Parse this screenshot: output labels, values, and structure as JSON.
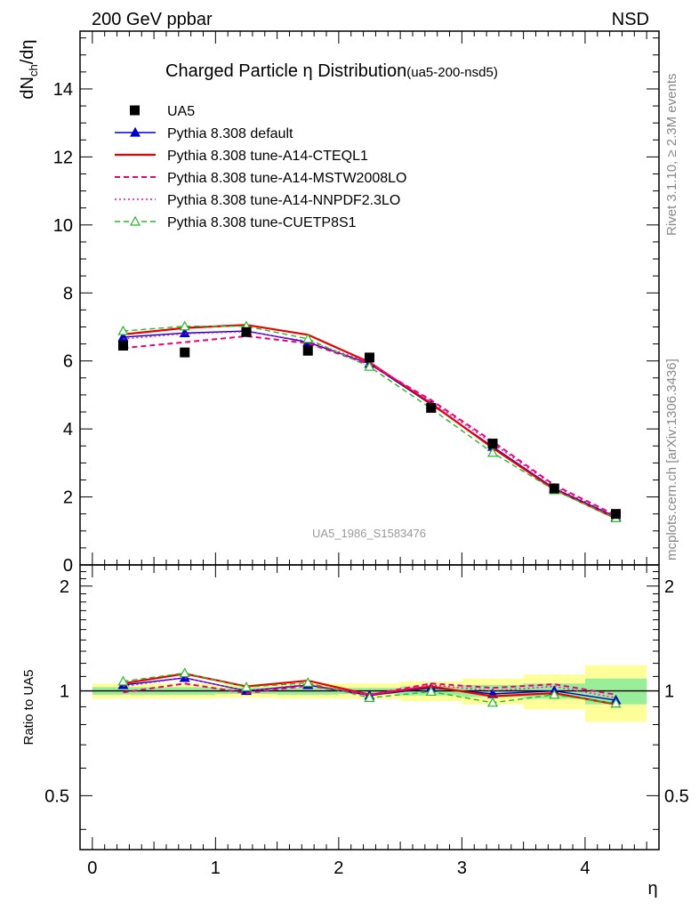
{
  "header": {
    "left": "200 GeV ppbar",
    "right": "NSD"
  },
  "side": {
    "rivet": "Rivet 3.1.10, ≥ 2.3M events",
    "mcplots": "mcplots.cern.ch [arXiv:1306.3436]"
  },
  "chart_data": [
    {
      "type": "line",
      "title": "Charged Particle η Distribution",
      "subtitle": "(ua5-200-nsd5)",
      "ylabel": "dN_ch/dη",
      "xlabel": "",
      "xlim": [
        -0.1,
        4.6
      ],
      "ylim": [
        0,
        15.7
      ],
      "yticks": [
        0,
        2,
        4,
        6,
        8,
        10,
        12,
        14
      ],
      "watermark": "UA5_1986_S1583476",
      "legend_position": "top-left",
      "x": [
        0.25,
        0.75,
        1.25,
        1.75,
        2.25,
        2.75,
        3.25,
        3.75,
        4.25
      ],
      "data": {
        "name": "UA5",
        "values": [
          6.45,
          6.25,
          6.85,
          6.3,
          6.1,
          4.62,
          3.57,
          2.25,
          1.5
        ],
        "color": "#000000"
      },
      "series": [
        {
          "name": "Pythia 8.308 default",
          "values": [
            6.7,
            6.82,
            6.88,
            6.55,
            5.92,
            4.72,
            3.48,
            2.25,
            1.41
          ],
          "color": "#0000cc",
          "dash": "solid",
          "marker": "triangle-filled"
        },
        {
          "name": "Pythia 8.308 tune-A14-CTEQL1",
          "values": [
            6.78,
            6.97,
            7.06,
            6.77,
            5.96,
            4.75,
            3.44,
            2.22,
            1.37
          ],
          "color": "#ee0000",
          "dash": "solid",
          "marker": "none"
        },
        {
          "name": "Pythia 8.308 tune-A14-MSTW2008LO",
          "values": [
            6.38,
            6.55,
            6.73,
            6.52,
            5.9,
            4.85,
            3.63,
            2.35,
            1.46
          ],
          "color": "#ee0077",
          "dash": "dashed",
          "marker": "none"
        },
        {
          "name": "Pythia 8.308 tune-A14-NNPDF2.3LO",
          "values": [
            6.65,
            6.8,
            6.86,
            6.58,
            5.95,
            4.8,
            3.57,
            2.31,
            1.43
          ],
          "color": "#ff00cc",
          "dash": "dotted",
          "marker": "none"
        },
        {
          "name": "Pythia 8.308 tune-CUETP8S1",
          "values": [
            6.88,
            7.02,
            7.02,
            6.65,
            5.83,
            4.6,
            3.3,
            2.2,
            1.38
          ],
          "color": "#22bb22",
          "dash": "dashed",
          "marker": "triangle-open"
        }
      ]
    },
    {
      "type": "line",
      "ylabel": "Ratio to UA5",
      "xlabel": "η",
      "xlim": [
        -0.1,
        4.6
      ],
      "ylim": [
        0.35,
        2.3
      ],
      "yscale": "log",
      "xticks": [
        0,
        1,
        2,
        3,
        4
      ],
      "yticks": [
        0.5,
        1,
        2
      ],
      "x": [
        0.25,
        0.75,
        1.25,
        1.75,
        2.25,
        2.75,
        3.25,
        3.75,
        4.25
      ],
      "bands": {
        "x_edges": [
          0,
          0.5,
          1,
          1.5,
          2,
          2.5,
          3,
          3.5,
          4,
          4.5
        ],
        "stat_lo": [
          0.975,
          0.975,
          0.98,
          0.975,
          0.98,
          0.97,
          0.96,
          0.95,
          0.915
        ],
        "stat_hi": [
          1.025,
          1.025,
          1.02,
          1.025,
          1.02,
          1.03,
          1.04,
          1.05,
          1.085
        ],
        "total_lo": [
          0.95,
          0.95,
          0.955,
          0.95,
          0.95,
          0.935,
          0.915,
          0.885,
          0.815
        ],
        "total_hi": [
          1.05,
          1.05,
          1.045,
          1.05,
          1.05,
          1.065,
          1.085,
          1.115,
          1.185
        ],
        "stat_color": "#99ee99",
        "total_color": "#ffff99"
      },
      "series": [
        {
          "name": "Pythia 8.308 default",
          "values": [
            1.04,
            1.09,
            1.0,
            1.04,
            0.97,
            1.02,
            0.98,
            1.0,
            0.94
          ],
          "color": "#0000cc",
          "dash": "solid",
          "marker": "triangle-filled"
        },
        {
          "name": "Pythia 8.308 tune-A14-CTEQL1",
          "values": [
            1.05,
            1.12,
            1.03,
            1.07,
            0.975,
            1.03,
            0.965,
            0.985,
            0.915
          ],
          "color": "#ee0000",
          "dash": "solid",
          "marker": "none"
        },
        {
          "name": "Pythia 8.308 tune-A14-MSTW2008LO",
          "values": [
            0.99,
            1.05,
            0.985,
            1.035,
            0.975,
            1.05,
            1.02,
            1.045,
            0.975
          ],
          "color": "#ee0077",
          "dash": "dashed",
          "marker": "none"
        },
        {
          "name": "Pythia 8.308 tune-A14-NNPDF2.3LO",
          "values": [
            1.03,
            1.09,
            1.0,
            1.045,
            0.975,
            1.04,
            1.0,
            1.03,
            0.955
          ],
          "color": "#ff00cc",
          "dash": "dotted",
          "marker": "none"
        },
        {
          "name": "Pythia 8.308 tune-CUETP8S1",
          "values": [
            1.065,
            1.125,
            1.025,
            1.055,
            0.955,
            0.995,
            0.925,
            0.975,
            0.92
          ],
          "color": "#22bb22",
          "dash": "dashed",
          "marker": "triangle-open"
        }
      ]
    }
  ]
}
